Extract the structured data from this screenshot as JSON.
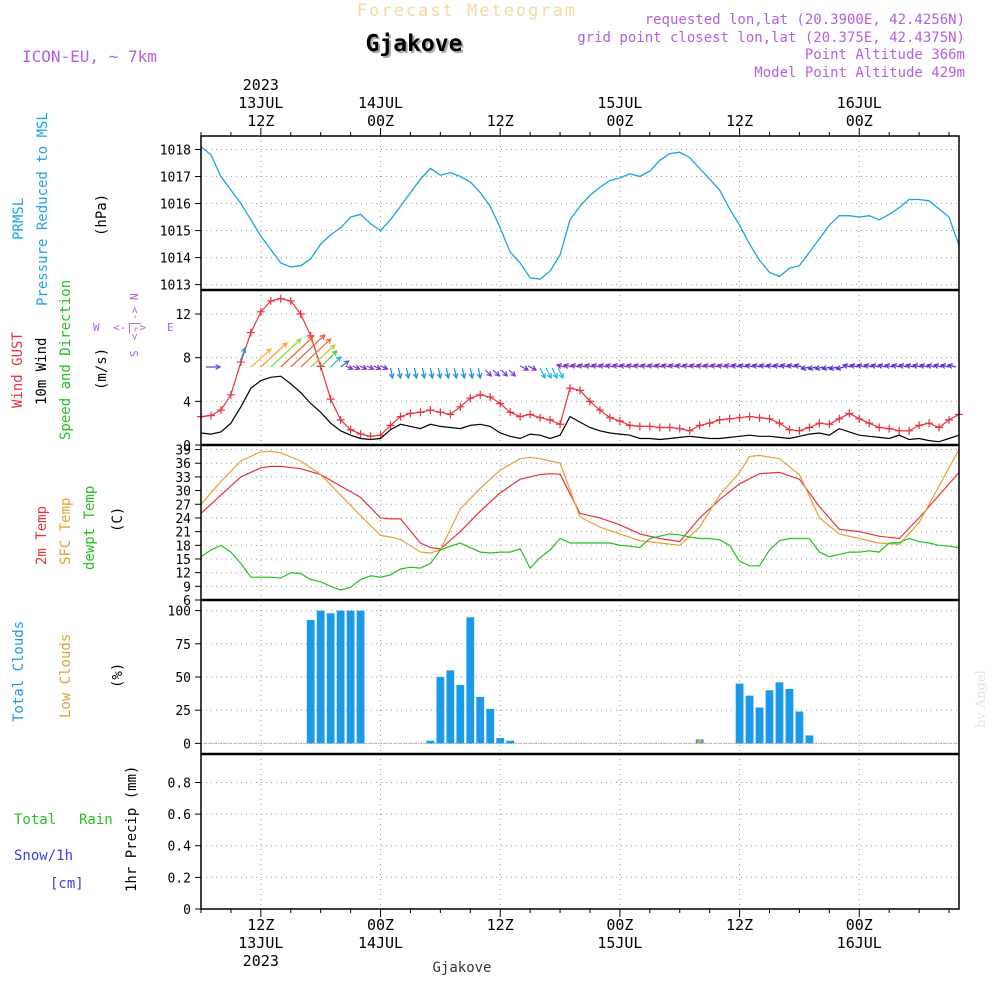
{
  "header": {
    "product": "Forecast Meteogram",
    "location": "Gjakove",
    "model": "ICON-EU, ~ 7km",
    "requested": "requested lon,lat (20.3900E, 42.4256N)",
    "grid_point": "grid point closest lon,lat (20.375E, 42.4375N)",
    "point_altitude": "Point Altitude 366m",
    "model_point_altitude": "Model Point Altitude 429m",
    "footer_location": "Gjakove",
    "watermark": "by Angel"
  },
  "time_axis": {
    "top_labels": [
      {
        "h": 12,
        "lines": [
          "2023",
          "13JUL",
          "12Z"
        ]
      },
      {
        "h": 24,
        "lines": [
          "14JUL",
          "00Z"
        ]
      },
      {
        "h": 36,
        "lines": [
          "12Z"
        ]
      },
      {
        "h": 48,
        "lines": [
          "15JUL",
          "00Z"
        ]
      },
      {
        "h": 60,
        "lines": [
          "12Z"
        ]
      },
      {
        "h": 72,
        "lines": [
          "16JUL",
          "00Z"
        ]
      }
    ],
    "bottom_labels": [
      {
        "h": 12,
        "lines": [
          "12Z",
          "13JUL",
          "2023"
        ]
      },
      {
        "h": 24,
        "lines": [
          "00Z",
          "14JUL"
        ]
      },
      {
        "h": 36,
        "lines": [
          "12Z"
        ]
      },
      {
        "h": 48,
        "lines": [
          "00Z",
          "15JUL"
        ]
      },
      {
        "h": 60,
        "lines": [
          "12Z"
        ]
      },
      {
        "h": 72,
        "lines": [
          "00Z",
          "16JUL"
        ]
      }
    ],
    "range_hours": [
      6,
      82
    ],
    "gridline_hours": [
      12,
      24,
      36,
      48,
      60,
      72
    ]
  },
  "panel_labels": {
    "pressure": [
      "PRMSL",
      "Pressure Reduced to MSL",
      "(hPa)"
    ],
    "wind": [
      "Wind GUST",
      "10m Wind",
      "Speed and Direction",
      "(m/s)"
    ],
    "compass": {
      "w": "W",
      "e": "E",
      "n": "N",
      "s": "S",
      "arrow": "<-|->"
    },
    "temp": [
      "2m Temp",
      "SFC Temp",
      "dewpt Temp",
      "(C)"
    ],
    "clouds": [
      "Total Clouds",
      "Low Clouds",
      "(%)"
    ],
    "precip": [
      "Total",
      "Rain",
      "Snow/1h",
      "[cm]",
      "1hr Precip (mm)"
    ]
  },
  "colors": {
    "pressure": "#1aa3e8",
    "gust": "#e8323c",
    "wind": "#000000",
    "t2m": "#e8323c",
    "tsfc": "#e6a030",
    "dewpt": "#22c21f",
    "clouds_total": "#1a9ae8",
    "clouds_low": "#d8a43a",
    "rain": "#22c21f",
    "snow": "#3c3ce8",
    "model": "#b45fe0",
    "header_title": "#f5d9a0"
  },
  "chart_data": [
    {
      "type": "line",
      "panel": "pressure",
      "ylim": [
        1012.8,
        1018.5
      ],
      "yticks": [
        1013,
        1014,
        1015,
        1016,
        1017,
        1018
      ],
      "series": [
        {
          "name": "PRMSL",
          "x": [
            6,
            7,
            8,
            9,
            10,
            11,
            12,
            13,
            14,
            15,
            16,
            17,
            18,
            19,
            20,
            21,
            22,
            23,
            24,
            25,
            26,
            27,
            28,
            29,
            30,
            31,
            32,
            33,
            34,
            35,
            36,
            37,
            38,
            39,
            40,
            41,
            42,
            43,
            44,
            45,
            46,
            47,
            48,
            49,
            50,
            51,
            52,
            53,
            54,
            55,
            56,
            57,
            58,
            59,
            60,
            61,
            62,
            63,
            64,
            65,
            66,
            67,
            68,
            69,
            70,
            71,
            72,
            73,
            74,
            75,
            76,
            77,
            78,
            79,
            80,
            81,
            82
          ],
          "y": [
            1018.1,
            1017.8,
            1017.0,
            1016.5,
            1016.0,
            1015.4,
            1014.8,
            1014.3,
            1013.8,
            1013.65,
            1013.7,
            1013.95,
            1014.5,
            1014.85,
            1015.1,
            1015.5,
            1015.6,
            1015.25,
            1015.0,
            1015.4,
            1015.9,
            1016.4,
            1016.9,
            1017.3,
            1017.05,
            1017.15,
            1017.0,
            1016.8,
            1016.4,
            1015.9,
            1015.1,
            1014.2,
            1013.8,
            1013.25,
            1013.2,
            1013.5,
            1014.1,
            1015.4,
            1015.9,
            1016.3,
            1016.6,
            1016.85,
            1016.95,
            1017.1,
            1017.0,
            1017.2,
            1017.6,
            1017.85,
            1017.9,
            1017.7,
            1017.3,
            1016.9,
            1016.5,
            1015.8,
            1015.2,
            1014.5,
            1013.9,
            1013.45,
            1013.3,
            1013.6,
            1013.7,
            1014.2,
            1014.7,
            1015.2,
            1015.55,
            1015.55,
            1015.5,
            1015.55,
            1015.4,
            1015.6,
            1015.85,
            1016.15,
            1016.15,
            1016.1,
            1015.8,
            1015.5,
            1014.45
          ]
        }
      ]
    },
    {
      "type": "line",
      "panel": "wind",
      "ylim": [
        0,
        14.2
      ],
      "yticks": [
        0,
        4,
        8,
        12
      ],
      "series": [
        {
          "name": "Wind GUST",
          "x": [
            6,
            7,
            8,
            9,
            10,
            11,
            12,
            13,
            14,
            15,
            16,
            17,
            18,
            19,
            20,
            21,
            22,
            23,
            24,
            25,
            26,
            27,
            28,
            29,
            30,
            31,
            32,
            33,
            34,
            35,
            36,
            37,
            38,
            39,
            40,
            41,
            42,
            43,
            44,
            45,
            46,
            47,
            48,
            49,
            50,
            51,
            52,
            53,
            54,
            55,
            56,
            57,
            58,
            59,
            60,
            61,
            62,
            63,
            64,
            65,
            66,
            67,
            68,
            69,
            70,
            71,
            72,
            73,
            74,
            75,
            76,
            77,
            78,
            79,
            80,
            81,
            82
          ],
          "y": [
            2.6,
            2.7,
            3.2,
            4.6,
            7.6,
            10.3,
            12.2,
            13.2,
            13.4,
            13.2,
            12.0,
            10.0,
            7.2,
            4.2,
            2.3,
            1.4,
            1.0,
            0.8,
            0.9,
            1.8,
            2.6,
            2.9,
            3.0,
            3.2,
            3.0,
            2.8,
            3.5,
            4.3,
            4.6,
            4.4,
            3.8,
            3.0,
            2.6,
            2.8,
            2.5,
            2.3,
            1.9,
            5.2,
            5.0,
            4.0,
            3.2,
            2.5,
            2.2,
            1.8,
            1.7,
            1.7,
            1.6,
            1.6,
            1.5,
            1.3,
            1.8,
            2.0,
            2.3,
            2.4,
            2.5,
            2.6,
            2.5,
            2.4,
            2.0,
            1.4,
            1.3,
            1.6,
            2.0,
            1.9,
            2.4,
            2.9,
            2.4,
            2.0,
            1.6,
            1.5,
            1.3,
            1.3,
            1.8,
            2.0,
            1.6,
            2.3,
            2.8
          ]
        },
        {
          "name": "10m Wind",
          "x": [
            6,
            7,
            8,
            9,
            10,
            11,
            12,
            13,
            14,
            15,
            16,
            17,
            18,
            19,
            20,
            21,
            22,
            23,
            24,
            25,
            26,
            27,
            28,
            29,
            30,
            31,
            32,
            33,
            34,
            35,
            36,
            37,
            38,
            39,
            40,
            41,
            42,
            43,
            44,
            45,
            46,
            47,
            48,
            49,
            50,
            51,
            52,
            53,
            54,
            55,
            56,
            57,
            58,
            59,
            60,
            61,
            62,
            63,
            64,
            65,
            66,
            67,
            68,
            69,
            70,
            71,
            72,
            73,
            74,
            75,
            76,
            77,
            78,
            79,
            80,
            81,
            82
          ],
          "y": [
            1.1,
            1.0,
            1.2,
            2.0,
            3.5,
            5.2,
            5.9,
            6.2,
            6.3,
            5.6,
            4.8,
            3.8,
            3.0,
            2.0,
            1.3,
            0.9,
            0.6,
            0.5,
            0.6,
            1.4,
            1.9,
            1.7,
            1.5,
            1.9,
            1.7,
            1.6,
            1.5,
            1.8,
            1.9,
            1.7,
            1.1,
            0.8,
            0.6,
            1.0,
            0.9,
            0.6,
            0.9,
            2.6,
            2.1,
            1.6,
            1.3,
            1.1,
            1.0,
            0.9,
            0.6,
            0.6,
            0.5,
            0.6,
            0.7,
            0.8,
            0.7,
            0.6,
            0.6,
            0.7,
            0.8,
            0.9,
            0.8,
            0.8,
            0.7,
            0.6,
            0.8,
            1.0,
            1.1,
            0.9,
            1.5,
            1.2,
            0.9,
            0.8,
            0.7,
            0.6,
            0.9,
            0.5,
            0.6,
            0.4,
            0.3,
            0.6,
            0.9
          ]
        }
      ],
      "direction_arrows": {
        "y_level": [
          6.7,
          7.5,
          8.0,
          8.4
        ],
        "note": "vectors along top of panel"
      }
    },
    {
      "type": "line",
      "panel": "temp",
      "ylim": [
        6,
        40
      ],
      "yticks": [
        6,
        9,
        12,
        15,
        18,
        21,
        24,
        27,
        30,
        33,
        36,
        39
      ],
      "series": [
        {
          "name": "2m Temp",
          "x": [
            6,
            8,
            10,
            12,
            13,
            14,
            16,
            18,
            20,
            22,
            24,
            25,
            26,
            28,
            29,
            30,
            32,
            34,
            36,
            38,
            40,
            41,
            42,
            44,
            46,
            48,
            50,
            52,
            54,
            56,
            58,
            60,
            62,
            64,
            66,
            68,
            70,
            72,
            74,
            76,
            78,
            80,
            82
          ],
          "y": [
            25,
            29,
            33,
            35,
            35.3,
            35.3,
            34.8,
            33.5,
            31,
            28.5,
            24,
            23.8,
            23.8,
            18.5,
            17.5,
            17.2,
            21,
            25.5,
            29.5,
            32.5,
            33.5,
            33.7,
            33.6,
            25,
            24,
            22.5,
            20.5,
            19.5,
            18.8,
            24,
            28,
            31.5,
            33.7,
            34,
            32.5,
            26.5,
            21.5,
            21,
            20,
            19.5,
            24,
            29,
            34
          ]
        },
        {
          "name": "SFC Temp",
          "x": [
            6,
            8,
            10,
            12,
            13,
            14,
            16,
            18,
            20,
            22,
            24,
            25,
            26,
            28,
            29,
            30,
            32,
            34,
            36,
            38,
            39,
            40,
            42,
            44,
            46,
            48,
            50,
            52,
            54,
            56,
            58,
            60,
            61,
            62,
            64,
            66,
            68,
            70,
            72,
            74,
            76,
            78,
            80,
            82
          ],
          "y": [
            27,
            32,
            36.5,
            38.5,
            38.6,
            38.3,
            36.5,
            33.5,
            29,
            24.5,
            20.2,
            19.8,
            19.3,
            16.5,
            16.3,
            17,
            26,
            30.5,
            34.5,
            37,
            37.3,
            37,
            36,
            24.2,
            22,
            20.5,
            19,
            18.5,
            18,
            22,
            29,
            34,
            37.5,
            37.7,
            37,
            33.5,
            24,
            20.5,
            19.5,
            18.5,
            18.2,
            23,
            31,
            39
          ]
        },
        {
          "name": "dewpt Temp",
          "x": [
            6,
            7,
            8,
            9,
            10,
            11,
            12,
            13,
            14,
            15,
            16,
            17,
            18,
            19,
            20,
            21,
            22,
            23,
            24,
            25,
            26,
            27,
            28,
            29,
            30,
            31,
            32,
            33,
            34,
            35,
            36,
            37,
            38,
            39,
            40,
            41,
            42,
            43,
            44,
            45,
            46,
            47,
            48,
            49,
            50,
            51,
            52,
            53,
            54,
            55,
            56,
            57,
            58,
            59,
            60,
            61,
            62,
            63,
            64,
            65,
            66,
            67,
            68,
            69,
            70,
            71,
            72,
            73,
            74,
            75,
            76,
            77,
            78,
            79,
            80,
            81,
            82
          ],
          "y": [
            15.5,
            17,
            18,
            16.5,
            14,
            11,
            11,
            11,
            10.8,
            12,
            11.8,
            10.5,
            10,
            9,
            8.2,
            8.8,
            10.5,
            11.3,
            11,
            11.5,
            12.8,
            13.2,
            13,
            14,
            17,
            17.8,
            18.5,
            17.5,
            16.5,
            16.3,
            16.5,
            16.5,
            17.2,
            13,
            15.3,
            17,
            19.5,
            18.5,
            18.5,
            18.5,
            18.5,
            18.5,
            18,
            17.8,
            17.5,
            19.5,
            20,
            20.5,
            20.3,
            19.8,
            19.5,
            19.5,
            19.2,
            18,
            14.5,
            13.5,
            13.5,
            17,
            19,
            19.5,
            19.5,
            19.5,
            16.5,
            15.5,
            16,
            16.5,
            16.5,
            16.8,
            16.5,
            18.5,
            18.6,
            19.5,
            18.8,
            18.5,
            18,
            17.8,
            17.5
          ]
        }
      ]
    },
    {
      "type": "bar",
      "panel": "clouds",
      "ylim": [
        -8,
        108
      ],
      "yticks": [
        0,
        25,
        50,
        75,
        100
      ],
      "series": [
        {
          "name": "Total Clouds",
          "x": [
            17,
            18,
            19,
            20,
            21,
            22,
            29,
            30,
            31,
            32,
            33,
            34,
            35,
            36,
            37,
            38,
            39,
            52,
            53,
            54,
            55,
            56,
            57,
            58,
            59,
            60,
            61,
            62,
            63,
            64,
            65,
            66,
            67
          ],
          "y": [
            93,
            100,
            98,
            100,
            100,
            100,
            2,
            50,
            55,
            44,
            95,
            35,
            26,
            4,
            2,
            0,
            0,
            0,
            0,
            0,
            0,
            3,
            0,
            0,
            0,
            45,
            36,
            27,
            40,
            46,
            41,
            24,
            6
          ]
        },
        {
          "name": "Low Clouds",
          "x": [
            56
          ],
          "y": [
            3
          ]
        }
      ]
    },
    {
      "type": "bar",
      "panel": "precip",
      "ylim": [
        0,
        0.98
      ],
      "yticks": [
        0,
        0.2,
        0.4,
        0.6,
        0.8
      ],
      "series": [
        {
          "name": "Total",
          "x": [],
          "y": []
        },
        {
          "name": "Snow/1h",
          "x": [],
          "y": []
        }
      ]
    }
  ]
}
